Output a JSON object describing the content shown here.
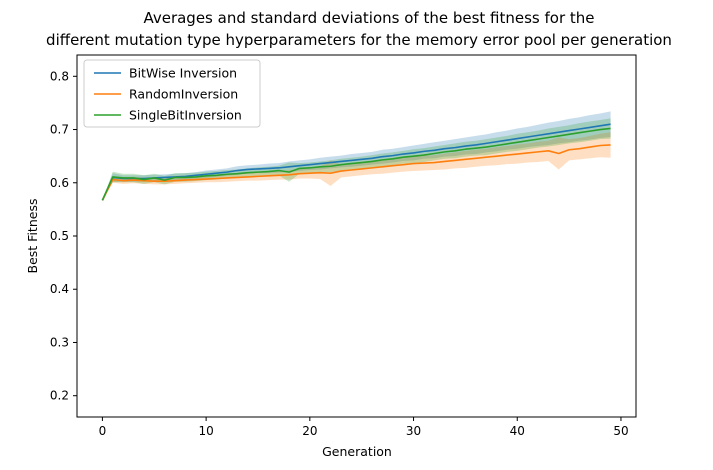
{
  "chart_data": {
    "type": "line",
    "title_lines": [
      "Averages and standard deviations of the best fitness for the",
      "different mutation type hyperparameters for the memory error pool per generation"
    ],
    "xlabel": "Generation",
    "ylabel": "Best Fitness",
    "xlim": [
      -2.45,
      51.45
    ],
    "ylim": [
      0.16,
      0.84
    ],
    "xticks": [
      0,
      10,
      20,
      30,
      40,
      50
    ],
    "yticks": [
      0.2,
      0.3,
      0.4,
      0.5,
      0.6,
      0.7,
      0.8
    ],
    "grid": false,
    "legend_position": "top-left",
    "x": [
      0,
      1,
      2,
      3,
      4,
      5,
      6,
      7,
      8,
      9,
      10,
      11,
      12,
      13,
      14,
      15,
      16,
      17,
      18,
      19,
      20,
      21,
      22,
      23,
      24,
      25,
      26,
      27,
      28,
      29,
      30,
      31,
      32,
      33,
      34,
      35,
      36,
      37,
      38,
      39,
      40,
      41,
      42,
      43,
      44,
      45,
      46,
      47,
      48,
      49
    ],
    "series": [
      {
        "name": "BitWise Inversion",
        "color": "#1f77b4",
        "mean": [
          0.567,
          0.61,
          0.608,
          0.608,
          0.608,
          0.609,
          0.61,
          0.611,
          0.612,
          0.614,
          0.616,
          0.618,
          0.62,
          0.623,
          0.625,
          0.626,
          0.627,
          0.628,
          0.63,
          0.632,
          0.634,
          0.636,
          0.638,
          0.64,
          0.642,
          0.644,
          0.646,
          0.649,
          0.651,
          0.654,
          0.656,
          0.659,
          0.661,
          0.664,
          0.666,
          0.669,
          0.671,
          0.674,
          0.677,
          0.68,
          0.683,
          0.686,
          0.689,
          0.692,
          0.695,
          0.698,
          0.701,
          0.704,
          0.707,
          0.71
        ],
        "std": [
          0.0,
          0.008,
          0.006,
          0.006,
          0.006,
          0.006,
          0.006,
          0.006,
          0.006,
          0.006,
          0.007,
          0.007,
          0.007,
          0.008,
          0.008,
          0.008,
          0.009,
          0.009,
          0.01,
          0.01,
          0.01,
          0.011,
          0.011,
          0.011,
          0.012,
          0.012,
          0.012,
          0.013,
          0.013,
          0.013,
          0.014,
          0.014,
          0.015,
          0.015,
          0.016,
          0.016,
          0.017,
          0.017,
          0.018,
          0.018,
          0.019,
          0.019,
          0.02,
          0.021,
          0.021,
          0.022,
          0.022,
          0.023,
          0.023,
          0.024
        ]
      },
      {
        "name": "RandomInversion",
        "color": "#ff7f0e",
        "mean": [
          0.567,
          0.606,
          0.604,
          0.605,
          0.604,
          0.603,
          0.603,
          0.604,
          0.605,
          0.606,
          0.607,
          0.608,
          0.609,
          0.61,
          0.611,
          0.612,
          0.613,
          0.614,
          0.615,
          0.617,
          0.618,
          0.619,
          0.618,
          0.622,
          0.624,
          0.626,
          0.628,
          0.63,
          0.632,
          0.634,
          0.636,
          0.637,
          0.638,
          0.64,
          0.642,
          0.644,
          0.646,
          0.648,
          0.65,
          0.652,
          0.654,
          0.656,
          0.658,
          0.66,
          0.655,
          0.662,
          0.664,
          0.667,
          0.67,
          0.671
        ],
        "std": [
          0.0,
          0.006,
          0.006,
          0.006,
          0.006,
          0.006,
          0.006,
          0.006,
          0.006,
          0.006,
          0.006,
          0.007,
          0.007,
          0.007,
          0.007,
          0.008,
          0.008,
          0.008,
          0.009,
          0.009,
          0.01,
          0.012,
          0.024,
          0.012,
          0.012,
          0.012,
          0.012,
          0.013,
          0.013,
          0.013,
          0.014,
          0.014,
          0.014,
          0.015,
          0.015,
          0.016,
          0.016,
          0.016,
          0.017,
          0.017,
          0.018,
          0.018,
          0.019,
          0.019,
          0.03,
          0.02,
          0.02,
          0.021,
          0.022,
          0.024
        ]
      },
      {
        "name": "SingleBitInversion",
        "color": "#2ca02c",
        "mean": [
          0.567,
          0.611,
          0.609,
          0.609,
          0.606,
          0.609,
          0.605,
          0.61,
          0.61,
          0.611,
          0.613,
          0.614,
          0.616,
          0.617,
          0.619,
          0.62,
          0.621,
          0.623,
          0.62,
          0.627,
          0.628,
          0.63,
          0.631,
          0.634,
          0.636,
          0.638,
          0.64,
          0.643,
          0.645,
          0.648,
          0.65,
          0.652,
          0.655,
          0.658,
          0.66,
          0.663,
          0.665,
          0.667,
          0.67,
          0.673,
          0.676,
          0.679,
          0.682,
          0.685,
          0.688,
          0.691,
          0.694,
          0.697,
          0.7,
          0.702
        ],
        "std": [
          0.0,
          0.01,
          0.008,
          0.008,
          0.008,
          0.008,
          0.008,
          0.008,
          0.008,
          0.008,
          0.008,
          0.008,
          0.008,
          0.008,
          0.008,
          0.009,
          0.009,
          0.009,
          0.018,
          0.01,
          0.01,
          0.01,
          0.011,
          0.011,
          0.011,
          0.011,
          0.012,
          0.012,
          0.012,
          0.012,
          0.013,
          0.013,
          0.013,
          0.013,
          0.014,
          0.014,
          0.014,
          0.015,
          0.015,
          0.015,
          0.016,
          0.016,
          0.016,
          0.017,
          0.017,
          0.017,
          0.018,
          0.018,
          0.018,
          0.019
        ]
      }
    ]
  }
}
